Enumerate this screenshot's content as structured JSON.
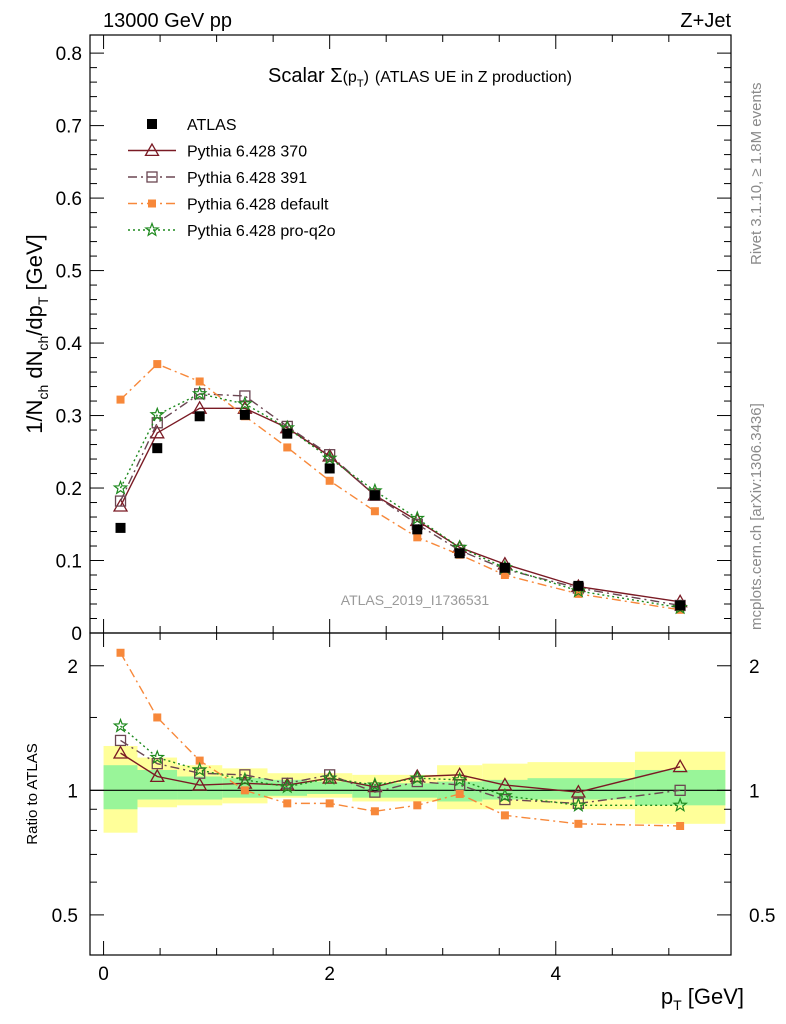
{
  "header": {
    "left": "13000 GeV pp",
    "right": "Z+Jet"
  },
  "side_labels": {
    "top": "Rivet 3.1.10, ≥ 1.8M events",
    "bottom": "mcplots.cern.ch [arXiv:1306.3436]"
  },
  "watermark": "ATLAS_2019_I1736531",
  "chart_data": {
    "type": "scatter",
    "title": "Scalar Σ(p_T) (ATLAS UE in Z production)",
    "title_main": "Scalar Σ",
    "title_paren": "(p",
    "title_sub": "T",
    "title_close": ")",
    "title_rest": "(ATLAS UE in Z production)",
    "ylabel": "1/N_ch dN_ch/dp_T [GeV]",
    "ylabel_parts": {
      "a": "1/N",
      "b": "ch",
      "c": " dN",
      "d": "ch",
      "e": "/dp",
      "f": "T",
      "g": " [GeV]"
    },
    "xlabel": "p_T [GeV]",
    "xlabel_parts": {
      "a": "p",
      "b": "T",
      "c": " [GeV]"
    },
    "ratio_ylabel": "Ratio to ATLAS",
    "xlim": [
      -0.12,
      5.55
    ],
    "ylim": [
      0,
      0.825
    ],
    "ratio_ylim": [
      0.4,
      2.4
    ],
    "ratio_log": true,
    "legend_position": "top-left",
    "x_ticks": [
      0,
      2,
      4
    ],
    "x_tick_labels": [
      "0",
      "2",
      "4"
    ],
    "y_ticks": [
      0,
      0.1,
      0.2,
      0.3,
      0.4,
      0.5,
      0.6,
      0.7,
      0.8
    ],
    "y_tick_labels": [
      "0",
      "0.1",
      "0.2",
      "0.3",
      "0.4",
      "0.5",
      "0.6",
      "0.7",
      "0.8"
    ],
    "ratio_ticks": [
      0.5,
      1,
      2
    ],
    "ratio_tick_labels": [
      "0.5",
      "1",
      "2"
    ],
    "x": [
      0.15,
      0.475,
      0.85,
      1.25,
      1.625,
      2.0,
      2.4,
      2.775,
      3.15,
      3.55,
      4.2,
      5.1
    ],
    "bin_edges": [
      0,
      0.3,
      0.65,
      1.05,
      1.45,
      1.8,
      2.2,
      2.6,
      2.95,
      3.35,
      3.75,
      4.7,
      5.5
    ],
    "series": [
      {
        "name": "ATLAS",
        "marker": "square-filled",
        "color": "#000000",
        "line": "none",
        "values": [
          0.145,
          0.255,
          0.299,
          0.301,
          0.275,
          0.227,
          0.19,
          0.143,
          0.11,
          0.09,
          0.065,
          0.038
        ],
        "ratio": [
          1,
          1,
          1,
          1,
          1,
          1,
          1,
          1,
          1,
          1,
          1,
          1
        ]
      },
      {
        "name": "Pythia 6.428 370",
        "marker": "triangle-open",
        "color": "#7a1a24",
        "line": "solid",
        "values": [
          0.175,
          0.276,
          0.31,
          0.31,
          0.283,
          0.244,
          0.19,
          0.155,
          0.118,
          0.095,
          0.064,
          0.043
        ],
        "ratio": [
          1.23,
          1.08,
          1.03,
          1.04,
          1.03,
          1.07,
          1.02,
          1.08,
          1.09,
          1.03,
          0.99,
          1.14
        ]
      },
      {
        "name": "Pythia 6.428 391",
        "marker": "square-open",
        "color": "#6b4652",
        "line": "dashdot",
        "values": [
          0.182,
          0.29,
          0.33,
          0.327,
          0.285,
          0.246,
          0.19,
          0.15,
          0.114,
          0.088,
          0.062,
          0.038
        ],
        "ratio": [
          1.32,
          1.16,
          1.1,
          1.09,
          1.04,
          1.09,
          0.99,
          1.05,
          1.03,
          0.95,
          0.93,
          1.0
        ]
      },
      {
        "name": "Pythia 6.428 default",
        "marker": "square-filled-small",
        "color": "#f7883a",
        "line": "dashdot",
        "values": [
          0.322,
          0.371,
          0.347,
          0.299,
          0.256,
          0.21,
          0.168,
          0.132,
          0.108,
          0.08,
          0.054,
          0.032
        ],
        "ratio": [
          2.15,
          1.5,
          1.18,
          1.0,
          0.93,
          0.93,
          0.89,
          0.92,
          0.98,
          0.87,
          0.83,
          0.82
        ]
      },
      {
        "name": "Pythia 6.428 pro-q2o",
        "marker": "star-open",
        "color": "#1f8a1f",
        "line": "dotted",
        "values": [
          0.2,
          0.301,
          0.33,
          0.316,
          0.283,
          0.241,
          0.196,
          0.158,
          0.118,
          0.09,
          0.058,
          0.035
        ],
        "ratio": [
          1.43,
          1.2,
          1.12,
          1.06,
          1.02,
          1.07,
          1.03,
          1.07,
          1.06,
          0.97,
          0.92,
          0.92
        ]
      }
    ],
    "band_green": [
      [
        0.9,
        1.15
      ],
      [
        0.95,
        1.12
      ],
      [
        0.95,
        1.08
      ],
      [
        0.96,
        1.07
      ],
      [
        0.97,
        1.06
      ],
      [
        0.98,
        1.05
      ],
      [
        0.96,
        1.04
      ],
      [
        0.96,
        1.04
      ],
      [
        0.94,
        1.05
      ],
      [
        0.95,
        1.06
      ],
      [
        0.95,
        1.07
      ],
      [
        0.92,
        1.12
      ]
    ],
    "band_yellow": [
      [
        0.79,
        1.28
      ],
      [
        0.91,
        1.2
      ],
      [
        0.92,
        1.15
      ],
      [
        0.93,
        1.13
      ],
      [
        0.96,
        1.1
      ],
      [
        0.96,
        1.1
      ],
      [
        0.94,
        1.09
      ],
      [
        0.94,
        1.09
      ],
      [
        0.9,
        1.15
      ],
      [
        0.9,
        1.16
      ],
      [
        0.9,
        1.17
      ],
      [
        0.83,
        1.24
      ]
    ]
  }
}
